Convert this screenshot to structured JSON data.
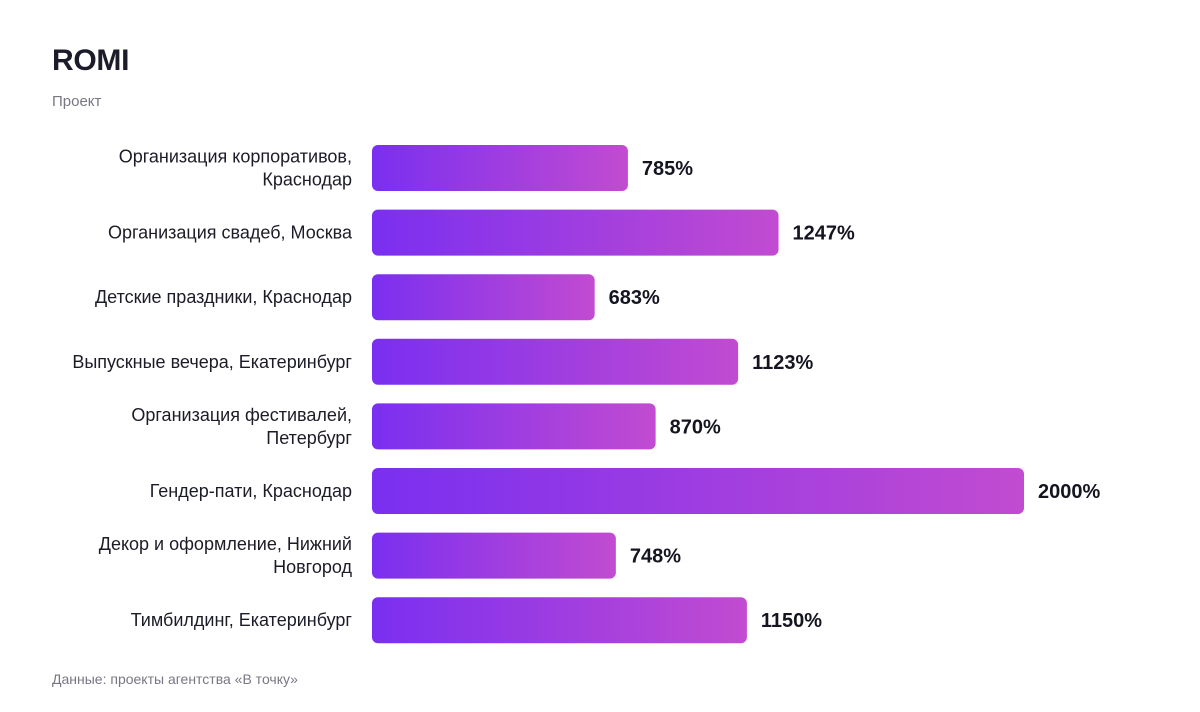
{
  "header": {
    "title": "ROMI",
    "subtitle": "Проект"
  },
  "footer": {
    "source": "Данные: проекты агентства «В точку»"
  },
  "colors": {
    "bar_start": "#7a2ff0",
    "bar_end": "#c24bd1"
  },
  "chart_data": {
    "type": "bar",
    "orientation": "horizontal",
    "title": "ROMI",
    "subtitle": "Проект",
    "unit": "%",
    "grid": false,
    "legend": "none",
    "xlim": [
      0,
      2000
    ],
    "categories": [
      [
        "Организация корпоративов,",
        "Краснодар"
      ],
      [
        "Организация свадеб, Москва"
      ],
      [
        "Детские праздники, Краснодар"
      ],
      [
        "Выпускные вечера, Екатеринбург"
      ],
      [
        "Организация фестивалей,",
        "Петербург"
      ],
      [
        "Гендер-пати, Краснодар"
      ],
      [
        "Декор и оформление, Нижний",
        "Новгород"
      ],
      [
        "Тимбилдинг, Екатеринбург"
      ]
    ],
    "values": [
      785,
      1247,
      683,
      1123,
      870,
      2000,
      748,
      1150
    ],
    "value_labels": [
      "785%",
      "1247%",
      "683%",
      "1123%",
      "870%",
      "2000%",
      "748%",
      "1150%"
    ]
  }
}
